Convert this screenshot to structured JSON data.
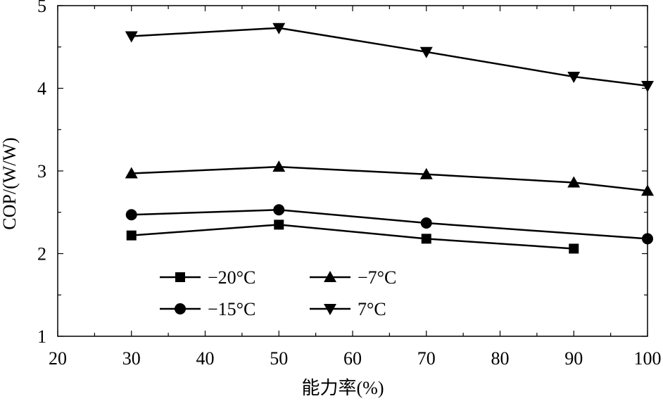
{
  "chart_data": {
    "type": "line",
    "xlabel": "能力率(%)",
    "ylabel": "COP/(W/W)",
    "xlim": [
      20,
      100
    ],
    "ylim": [
      1,
      5
    ],
    "x_ticks": [
      "20",
      "30",
      "40",
      "50",
      "60",
      "70",
      "80",
      "90",
      "100"
    ],
    "y_ticks": [
      "1",
      "2",
      "3",
      "4",
      "5"
    ],
    "grid": false,
    "legend_position": "lower-left",
    "series": [
      {
        "name": "−20°C",
        "marker": "square",
        "x": [
          30,
          50,
          70,
          90
        ],
        "y": [
          2.22,
          2.35,
          2.18,
          2.06
        ]
      },
      {
        "name": "−15°C",
        "marker": "circle",
        "x": [
          30,
          50,
          70,
          100
        ],
        "y": [
          2.47,
          2.53,
          2.37,
          2.18
        ]
      },
      {
        "name": "−7°C",
        "marker": "triangle-up",
        "x": [
          30,
          50,
          70,
          90,
          100
        ],
        "y": [
          2.97,
          3.05,
          2.96,
          2.86,
          2.76
        ]
      },
      {
        "name": "7°C",
        "marker": "triangle-down",
        "x": [
          30,
          50,
          70,
          90,
          100
        ],
        "y": [
          4.63,
          4.73,
          4.44,
          4.14,
          4.03
        ]
      }
    ]
  }
}
